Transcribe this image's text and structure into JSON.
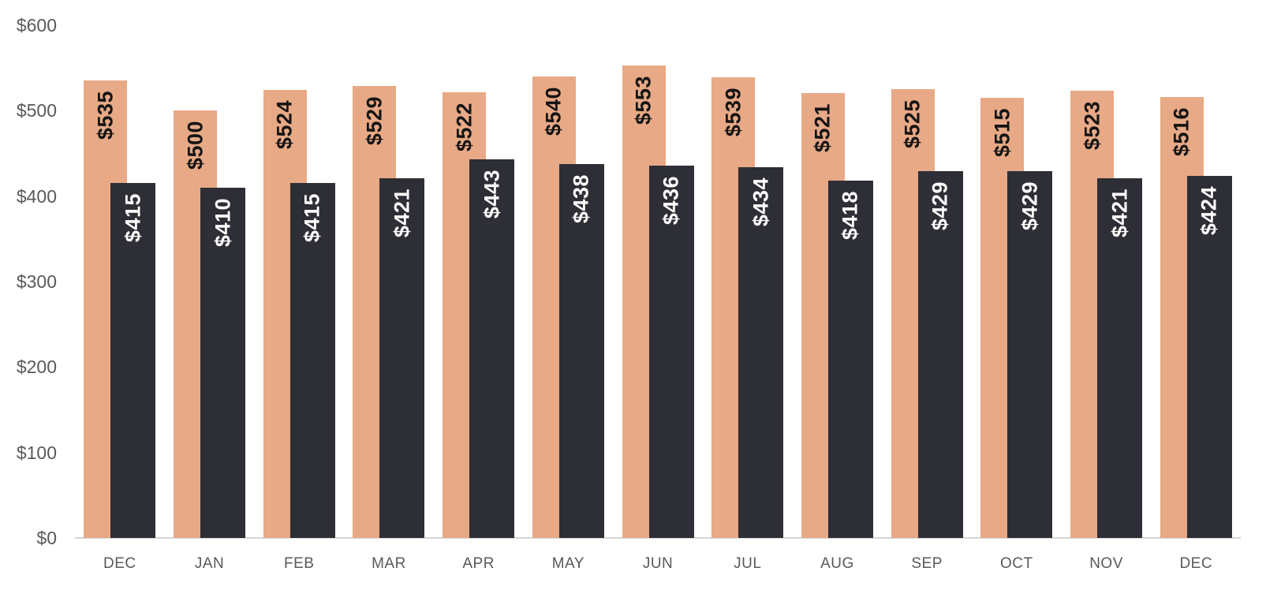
{
  "chart_data": {
    "type": "bar",
    "title": "",
    "subtitle": "",
    "legend": "none",
    "grid": false,
    "background": "#FFFFFF",
    "axis_line_color": "#D6D6D6",
    "bar_label_position": "inside-end-rotated-90",
    "categories": [
      "DEC",
      "JAN",
      "FEB",
      "MAR",
      "APR",
      "MAY",
      "JUN",
      "JUL",
      "AUG",
      "SEP",
      "OCT",
      "NOV",
      "DEC"
    ],
    "series": [
      {
        "name": "series-1-tan",
        "color": "#E7A986",
        "label_color": "#141414",
        "values": [
          535,
          500,
          524,
          529,
          522,
          540,
          553,
          539,
          521,
          525,
          515,
          523,
          516
        ],
        "labels": [
          "$535",
          "$500",
          "$524",
          "$529",
          "$522",
          "$540",
          "$553",
          "$539",
          "$521",
          "$525",
          "$515",
          "$523",
          "$516"
        ]
      },
      {
        "name": "series-2-dark",
        "color": "#2E2E36",
        "label_color": "#FFFFFF",
        "values": [
          415,
          410,
          415,
          421,
          443,
          438,
          436,
          434,
          418,
          429,
          429,
          421,
          424
        ],
        "labels": [
          "$415",
          "$410",
          "$415",
          "$421",
          "$443",
          "$438",
          "$436",
          "$434",
          "$418",
          "$429",
          "$429",
          "$421",
          "$424"
        ]
      }
    ],
    "y_axis": {
      "min": 0,
      "max": 600,
      "tick_step": 100,
      "tick_labels": [
        "$0",
        "$100",
        "$200",
        "$300",
        "$400",
        "$500",
        "$600"
      ],
      "label_color": "#595959"
    },
    "x_axis": {
      "label_color": "#595959"
    }
  }
}
